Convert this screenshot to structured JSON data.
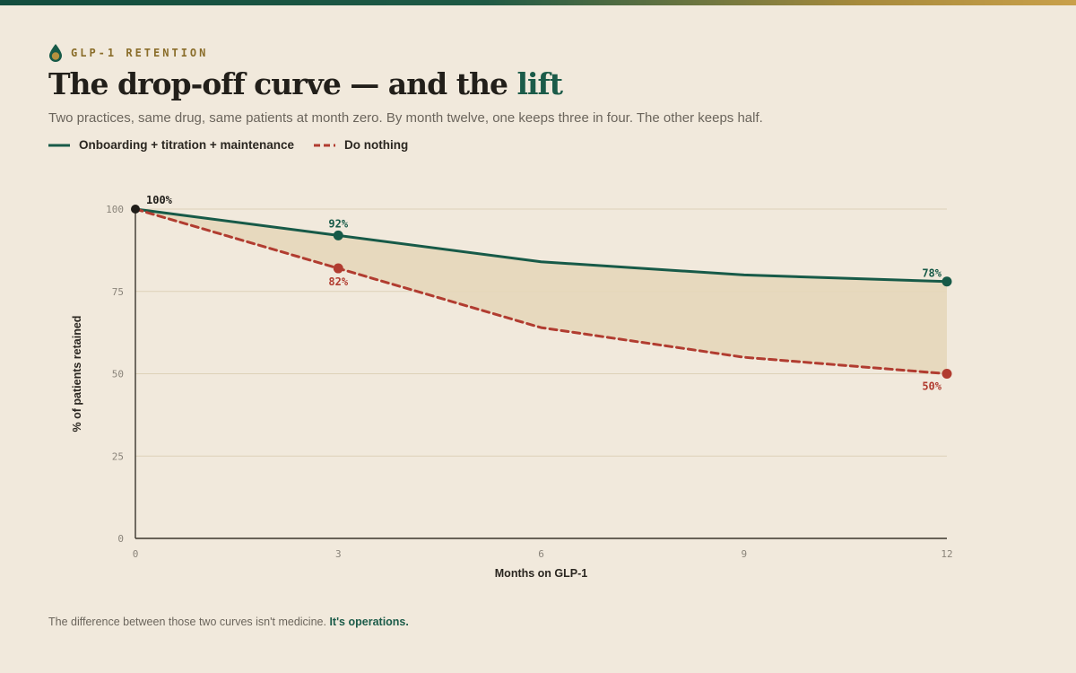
{
  "header": {
    "eyebrow": "GLP-1 RETENTION",
    "title_main": "The drop-off curve — and the ",
    "title_accent": "lift",
    "subtitle": "Two practices, same drug, same patients at month zero. By month twelve, one keeps three in four. The other keeps half."
  },
  "legend": {
    "items": [
      {
        "label": "Onboarding + titration + maintenance",
        "style": "solid",
        "color": "#175a48"
      },
      {
        "label": "Do nothing",
        "style": "dashed",
        "color": "#b13c30"
      }
    ]
  },
  "footer": {
    "text": "The difference between those two curves isn't medicine.",
    "emphasis": "It's operations."
  },
  "colors": {
    "green": "#175a48",
    "red": "#b13c30",
    "fill": "#e6d7ba",
    "grid": "#ddd1b8",
    "axis": "#3a352d"
  },
  "chart_data": {
    "type": "line",
    "xlabel": "Months on GLP-1",
    "ylabel": "% of patients retained",
    "xlim": [
      0,
      12
    ],
    "ylim": [
      0,
      100
    ],
    "x_ticks": [
      0,
      3,
      6,
      9,
      12
    ],
    "y_ticks": [
      0,
      25,
      50,
      75,
      100
    ],
    "grid": true,
    "legend_position": "top-left",
    "shaded_gap_between_series": true,
    "series": [
      {
        "name": "Onboarding + titration + maintenance",
        "style": "solid",
        "color": "#175a48",
        "x": [
          0,
          3,
          6,
          9,
          12
        ],
        "values": [
          100,
          92,
          84,
          80,
          78
        ]
      },
      {
        "name": "Do nothing",
        "style": "dashed",
        "color": "#b13c30",
        "x": [
          0,
          3,
          6,
          9,
          12
        ],
        "values": [
          100,
          82,
          64,
          55,
          50
        ]
      }
    ],
    "annotations": [
      {
        "series": 0,
        "x": 0,
        "value": 100,
        "text": "100%"
      },
      {
        "series": 0,
        "x": 3,
        "value": 92,
        "text": "92%"
      },
      {
        "series": 1,
        "x": 3,
        "value": 82,
        "text": "82%"
      },
      {
        "series": 0,
        "x": 12,
        "value": 78,
        "text": "78%"
      },
      {
        "series": 1,
        "x": 12,
        "value": 50,
        "text": "50%"
      }
    ]
  }
}
